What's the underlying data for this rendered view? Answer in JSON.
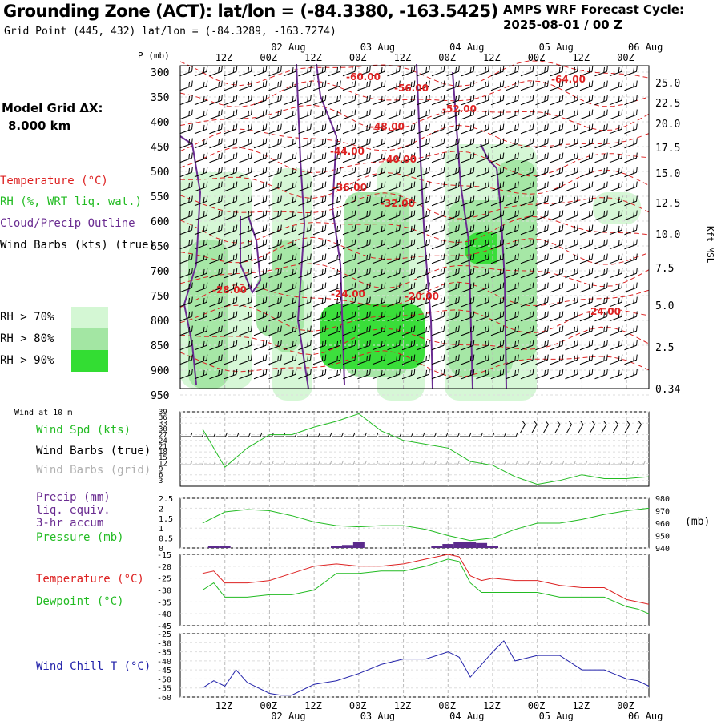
{
  "header": {
    "title": "Grounding Zone (ACT):  lat/lon = (-84.3380, -163.5425)",
    "subtitle": "Grid Point (445, 432) lat/lon = (-84.3289, -163.7274)",
    "cycle_line1": "AMPS WRF Forecast Cycle:",
    "cycle_line2": "2025-08-01 / 00  Z",
    "grid_label": "Model Grid ΔX:",
    "grid_value": "8.000 km"
  },
  "colors": {
    "temperature": "#dd2222",
    "rh": "#22bb22",
    "cloud": "#6a2c91",
    "wind": "#000000",
    "wind_grid": "#b0b0b0",
    "precip": "#5b2a8c",
    "pressure": "#22bb22",
    "dewpoint": "#22bb22",
    "windchill": "#2222aa",
    "rh70": "#d4f7d4",
    "rh80": "#a3e6a3",
    "rh90": "#33dd33"
  },
  "time_axis": {
    "top_hours": [
      "12Z",
      "00Z",
      "12Z",
      "00Z",
      "12Z",
      "00Z",
      "12Z",
      "00Z",
      "12Z",
      "00Z"
    ],
    "top_dates": [
      "02 Aug",
      "03 Aug",
      "04 Aug",
      "05 Aug",
      "06 Aug"
    ],
    "bottom_hours": [
      "12Z",
      "00Z",
      "12Z",
      "00Z",
      "12Z",
      "00Z",
      "12Z",
      "00Z",
      "12Z",
      "00Z"
    ],
    "bottom_dates": [
      "02 Aug",
      "03 Aug",
      "04 Aug",
      "05 Aug",
      "06 Aug"
    ]
  },
  "xsection": {
    "p_label": "P (mb)",
    "pressure_ticks": [
      "300",
      "350",
      "400",
      "450",
      "500",
      "550",
      "600",
      "650",
      "700",
      "750",
      "800",
      "850",
      "900",
      "950"
    ],
    "height_ticks": [
      "25.0",
      "22.5",
      "20.0",
      "17.5",
      "15.0",
      "12.5",
      "10.0",
      "7.5",
      "5.0",
      "2.5",
      "0.34"
    ],
    "height_axis_label": "Kft MSL",
    "legend": {
      "temperature": "Temperature (°C)",
      "rh": "RH (%, WRT liq. wat.)",
      "cloud": "Cloud/Precip Outline",
      "wind": "Wind Barbs (kts) (true)",
      "rh70": "RH > 70%",
      "rh80": "RH > 80%",
      "rh90": "RH > 90%"
    },
    "contour_labels": [
      "-60.00",
      "-56.00",
      "-52.00",
      "-64.00",
      "-48.00",
      "-44.00",
      "-40.00",
      "-36.00",
      "-32.00",
      "-28.00",
      "-24.00",
      "-20.00",
      "-24.00"
    ]
  },
  "panels": {
    "wind_title": "Wind at 10 m",
    "wind_legend": [
      "Wind Spd (kts)",
      "Wind Barbs (true)",
      "Wind Barbs (grid)"
    ],
    "wind_ticks": [
      "39",
      "36",
      "33",
      "30",
      "27",
      "24",
      "21",
      "18",
      "15",
      "12",
      "9",
      "6",
      "3"
    ],
    "precip_legend": [
      "Precip (mm)",
      "liq. equiv.",
      "3-hr accum",
      "Pressure (mb)"
    ],
    "precip_ticks": [
      "2.5",
      "2",
      "1.5",
      "1",
      "0.5",
      "0"
    ],
    "pressure_ticks": [
      "980",
      "970",
      "960",
      "950",
      "940"
    ],
    "pressure_unit": "(mb)",
    "temp_legend": [
      "Temperature (°C)",
      "Dewpoint (°C)"
    ],
    "temp_ticks": [
      "-15",
      "-20",
      "-25",
      "-30",
      "-35",
      "-40",
      "-45"
    ],
    "chill_legend": "Wind Chill T (°C)",
    "chill_ticks": [
      "-25",
      "-30",
      "-35",
      "-40",
      "-45",
      "-50",
      "-55",
      "-60"
    ]
  },
  "chart_data": [
    {
      "type": "line",
      "title": "Wind at 10 m",
      "ylabel": "Wind Spd (kts)",
      "ylim": [
        0,
        39
      ],
      "x_hours": [
        0,
        6,
        12,
        18,
        24,
        30,
        36,
        42,
        48,
        54,
        60,
        66,
        72,
        78,
        84,
        90,
        96,
        102,
        108,
        114,
        120
      ],
      "series": [
        {
          "name": "Wind Spd (kts)",
          "values": [
            30,
            10,
            20,
            27,
            27,
            31,
            34,
            38,
            29,
            24,
            22,
            20,
            13,
            11,
            5,
            1,
            3,
            6,
            4,
            4,
            5
          ]
        }
      ]
    },
    {
      "type": "line",
      "ylabel": "Pressure (mb)",
      "ylim": [
        940,
        980
      ],
      "x_hours": [
        0,
        6,
        12,
        18,
        24,
        30,
        36,
        42,
        48,
        54,
        60,
        66,
        72,
        78,
        84,
        90,
        96,
        102,
        108,
        114,
        120
      ],
      "series": [
        {
          "name": "Pressure (mb)",
          "values": [
            960,
            969,
            971,
            970,
            966,
            961,
            958,
            957,
            958,
            958,
            955,
            950,
            946,
            948,
            955,
            960,
            960,
            963,
            967,
            970,
            972
          ]
        }
      ]
    },
    {
      "type": "bar",
      "ylabel": "Precip (mm)",
      "ylim": [
        0,
        2.5
      ],
      "x_hours": [
        3,
        6,
        36,
        39,
        42,
        63,
        66,
        69,
        72,
        75,
        78
      ],
      "values": [
        0.1,
        0.1,
        0.1,
        0.15,
        0.3,
        0.1,
        0.2,
        0.3,
        0.3,
        0.25,
        0.1
      ]
    },
    {
      "type": "line",
      "ylim": [
        -45,
        -15
      ],
      "x_hours": [
        0,
        3,
        6,
        12,
        18,
        24,
        30,
        36,
        42,
        48,
        54,
        60,
        66,
        69,
        72,
        75,
        78,
        84,
        90,
        96,
        102,
        108,
        114,
        117,
        120
      ],
      "series": [
        {
          "name": "Temperature (°C)",
          "values": [
            -23,
            -22,
            -27,
            -27,
            -26,
            -23,
            -20,
            -19,
            -20,
            -20,
            -19,
            -17,
            -15,
            -16,
            -24,
            -26,
            -25,
            -26,
            -26,
            -28,
            -29,
            -29,
            -34,
            -35,
            -36
          ]
        },
        {
          "name": "Dewpoint (°C)",
          "values": [
            -30,
            -27,
            -33,
            -33,
            -32,
            -32,
            -30,
            -23,
            -23,
            -22,
            -22,
            -20,
            -17,
            -18,
            -27,
            -31,
            -31,
            -31,
            -31,
            -33,
            -33,
            -33,
            -37,
            -38,
            -40
          ]
        }
      ]
    },
    {
      "type": "line",
      "ylim": [
        -60,
        -25
      ],
      "x_hours": [
        0,
        3,
        6,
        9,
        12,
        18,
        21,
        24,
        30,
        36,
        42,
        48,
        54,
        60,
        66,
        69,
        72,
        75,
        78,
        81,
        84,
        90,
        96,
        102,
        108,
        114,
        117,
        120
      ],
      "series": [
        {
          "name": "Wind Chill T (°C)",
          "values": [
            -55,
            -51,
            -54,
            -45,
            -52,
            -58,
            -59,
            -59,
            -53,
            -51,
            -47,
            -42,
            -39,
            -39,
            -35,
            -38,
            -49,
            -42,
            -35,
            -29,
            -40,
            -37,
            -37,
            -45,
            -45,
            -50,
            -51,
            -54
          ]
        }
      ]
    }
  ]
}
